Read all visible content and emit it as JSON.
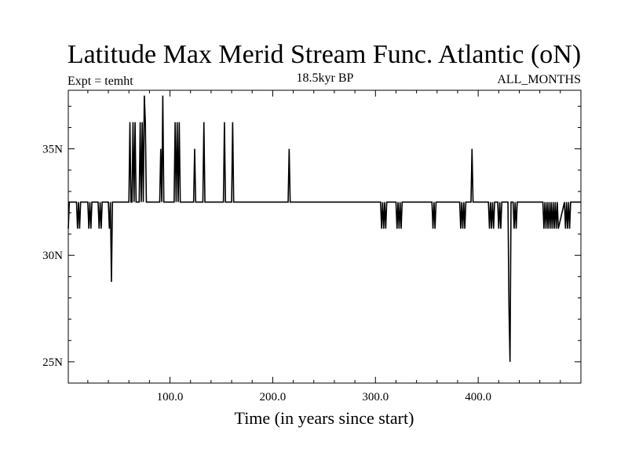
{
  "chart_data": {
    "type": "line",
    "title": "Latitude Max Merid Stream Func. Atlantic (oN)",
    "subtitle_left": "Expt = temht",
    "subtitle_center": "18.5kyr BP",
    "subtitle_right": "ALL_MONTHS",
    "xlabel": "Time (in years since start)",
    "ylabel": "",
    "xlim": [
      1,
      500
    ],
    "ylim": [
      24,
      37.75
    ],
    "x_ticks": [
      {
        "value": 100,
        "label": "100.0"
      },
      {
        "value": 200,
        "label": "200.0"
      },
      {
        "value": 300,
        "label": "300.0"
      },
      {
        "value": 400,
        "label": "400.0"
      }
    ],
    "y_ticks": [
      {
        "value": 25,
        "label": "25N"
      },
      {
        "value": 30,
        "label": "30N"
      },
      {
        "value": 35,
        "label": "35N"
      }
    ],
    "grid": false,
    "series": [
      {
        "color": "#000000",
        "x": [
          1,
          2,
          3,
          9,
          10,
          11,
          12,
          13,
          14,
          15,
          20,
          21,
          22,
          23,
          24,
          25,
          30,
          31,
          32,
          33,
          34,
          35,
          40,
          41,
          42,
          43,
          44,
          45,
          46,
          47,
          60,
          61,
          62,
          63,
          64,
          65,
          66,
          67,
          68,
          69,
          70,
          71,
          72,
          73,
          74,
          75,
          76,
          77,
          78,
          80,
          90,
          91,
          92,
          93,
          94,
          95,
          96,
          104,
          105,
          106,
          107,
          108,
          109,
          110,
          111,
          112,
          123,
          124,
          125,
          132,
          133,
          134,
          152,
          153,
          154,
          160,
          161,
          162,
          215,
          216,
          217,
          218,
          219,
          305,
          306,
          307,
          308,
          309,
          310,
          311,
          320,
          321,
          322,
          323,
          324,
          325,
          326,
          355,
          356,
          357,
          358,
          359,
          360,
          382,
          383,
          384,
          385,
          386,
          387,
          388,
          389,
          392,
          393,
          394,
          395,
          396,
          410,
          411,
          412,
          413,
          414,
          415,
          416,
          418,
          419,
          420,
          421,
          422,
          423,
          428,
          429,
          430,
          431,
          432,
          434,
          435,
          436,
          437,
          438,
          440,
          462,
          463,
          464,
          465,
          466,
          467,
          468,
          469,
          470,
          471,
          472,
          473,
          474,
          475,
          476,
          477,
          478,
          484,
          485,
          486,
          487,
          488,
          489,
          490,
          500
        ],
        "values": [
          31.25,
          32.5,
          32.5,
          32.5,
          31.25,
          32.5,
          31.25,
          32.5,
          32.5,
          32.5,
          32.5,
          31.25,
          32.5,
          31.25,
          32.5,
          32.5,
          32.5,
          31.25,
          32.5,
          31.25,
          32.5,
          32.5,
          32.5,
          31.25,
          32.5,
          28.75,
          32.5,
          32.5,
          32.5,
          32.5,
          32.5,
          36.25,
          32.5,
          32.5,
          36.25,
          32.5,
          36.25,
          32.5,
          32.5,
          32.5,
          32.5,
          36.25,
          32.5,
          36.25,
          32.5,
          37.5,
          36.25,
          32.5,
          32.5,
          32.5,
          32.5,
          35,
          32.5,
          37.5,
          32.5,
          32.5,
          32.5,
          32.5,
          36.25,
          32.5,
          36.25,
          32.5,
          36.25,
          32.5,
          32.5,
          32.5,
          32.5,
          35,
          32.5,
          32.5,
          36.25,
          32.5,
          32.5,
          36.25,
          32.5,
          32.5,
          36.25,
          32.5,
          32.5,
          35,
          32.5,
          32.5,
          32.5,
          32.5,
          31.25,
          32.5,
          31.25,
          32.5,
          31.25,
          32.5,
          32.5,
          31.25,
          32.5,
          31.25,
          32.5,
          31.25,
          32.5,
          32.5,
          31.25,
          32.5,
          31.25,
          32.5,
          32.5,
          32.5,
          31.25,
          32.5,
          31.25,
          32.5,
          31.25,
          32.5,
          32.5,
          32.5,
          32.5,
          35,
          32.5,
          32.5,
          32.5,
          31.25,
          32.5,
          31.25,
          32.5,
          31.25,
          32.5,
          32.5,
          32.5,
          31.25,
          32.5,
          31.25,
          32.5,
          32.5,
          32.5,
          27.5,
          25,
          32.5,
          32.5,
          31.25,
          32.5,
          31.25,
          32.5,
          32.5,
          32.5,
          32.5,
          31.25,
          32.5,
          31.25,
          32.5,
          31.25,
          32.5,
          31.25,
          32.5,
          31.25,
          32.5,
          31.25,
          32.5,
          31.25,
          32.5,
          31.25,
          32.5,
          31.25,
          32.5,
          31.25,
          32.5,
          31.25,
          32.5,
          32.5
        ]
      }
    ]
  }
}
